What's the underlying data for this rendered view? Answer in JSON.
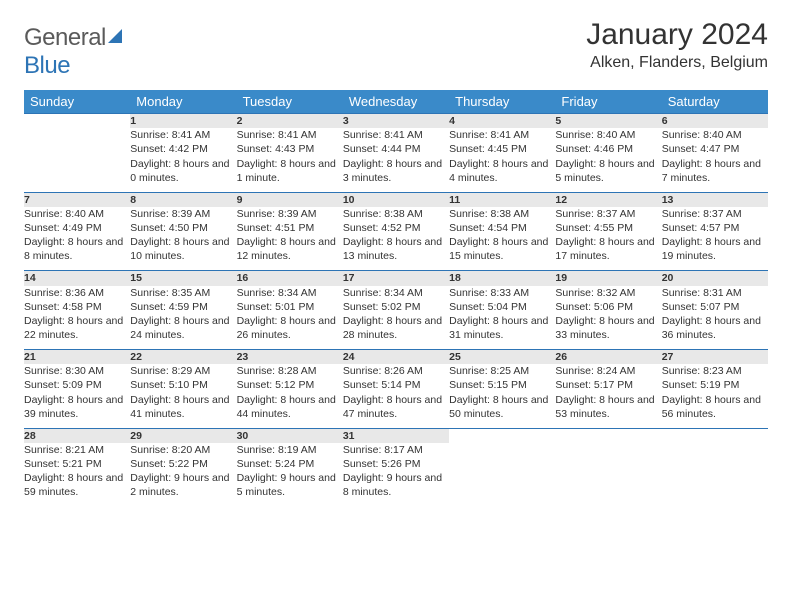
{
  "logo": {
    "name_part1": "General",
    "name_part2": "Blue"
  },
  "title": "January 2024",
  "location": "Alken, Flanders, Belgium",
  "colors": {
    "header_bg": "#3a8ac9",
    "header_text": "#ffffff",
    "row_border": "#2d74b5",
    "daynum_bg": "#e8e8e8",
    "body_text": "#333333",
    "logo_gray": "#5a5a5a",
    "logo_blue": "#2d74b5"
  },
  "columns": [
    "Sunday",
    "Monday",
    "Tuesday",
    "Wednesday",
    "Thursday",
    "Friday",
    "Saturday"
  ],
  "weeks": [
    [
      null,
      {
        "n": "1",
        "sr": "8:41 AM",
        "ss": "4:42 PM",
        "dl": "8 hours and 0 minutes."
      },
      {
        "n": "2",
        "sr": "8:41 AM",
        "ss": "4:43 PM",
        "dl": "8 hours and 1 minute."
      },
      {
        "n": "3",
        "sr": "8:41 AM",
        "ss": "4:44 PM",
        "dl": "8 hours and 3 minutes."
      },
      {
        "n": "4",
        "sr": "8:41 AM",
        "ss": "4:45 PM",
        "dl": "8 hours and 4 minutes."
      },
      {
        "n": "5",
        "sr": "8:40 AM",
        "ss": "4:46 PM",
        "dl": "8 hours and 5 minutes."
      },
      {
        "n": "6",
        "sr": "8:40 AM",
        "ss": "4:47 PM",
        "dl": "8 hours and 7 minutes."
      }
    ],
    [
      {
        "n": "7",
        "sr": "8:40 AM",
        "ss": "4:49 PM",
        "dl": "8 hours and 8 minutes."
      },
      {
        "n": "8",
        "sr": "8:39 AM",
        "ss": "4:50 PM",
        "dl": "8 hours and 10 minutes."
      },
      {
        "n": "9",
        "sr": "8:39 AM",
        "ss": "4:51 PM",
        "dl": "8 hours and 12 minutes."
      },
      {
        "n": "10",
        "sr": "8:38 AM",
        "ss": "4:52 PM",
        "dl": "8 hours and 13 minutes."
      },
      {
        "n": "11",
        "sr": "8:38 AM",
        "ss": "4:54 PM",
        "dl": "8 hours and 15 minutes."
      },
      {
        "n": "12",
        "sr": "8:37 AM",
        "ss": "4:55 PM",
        "dl": "8 hours and 17 minutes."
      },
      {
        "n": "13",
        "sr": "8:37 AM",
        "ss": "4:57 PM",
        "dl": "8 hours and 19 minutes."
      }
    ],
    [
      {
        "n": "14",
        "sr": "8:36 AM",
        "ss": "4:58 PM",
        "dl": "8 hours and 22 minutes."
      },
      {
        "n": "15",
        "sr": "8:35 AM",
        "ss": "4:59 PM",
        "dl": "8 hours and 24 minutes."
      },
      {
        "n": "16",
        "sr": "8:34 AM",
        "ss": "5:01 PM",
        "dl": "8 hours and 26 minutes."
      },
      {
        "n": "17",
        "sr": "8:34 AM",
        "ss": "5:02 PM",
        "dl": "8 hours and 28 minutes."
      },
      {
        "n": "18",
        "sr": "8:33 AM",
        "ss": "5:04 PM",
        "dl": "8 hours and 31 minutes."
      },
      {
        "n": "19",
        "sr": "8:32 AM",
        "ss": "5:06 PM",
        "dl": "8 hours and 33 minutes."
      },
      {
        "n": "20",
        "sr": "8:31 AM",
        "ss": "5:07 PM",
        "dl": "8 hours and 36 minutes."
      }
    ],
    [
      {
        "n": "21",
        "sr": "8:30 AM",
        "ss": "5:09 PM",
        "dl": "8 hours and 39 minutes."
      },
      {
        "n": "22",
        "sr": "8:29 AM",
        "ss": "5:10 PM",
        "dl": "8 hours and 41 minutes."
      },
      {
        "n": "23",
        "sr": "8:28 AM",
        "ss": "5:12 PM",
        "dl": "8 hours and 44 minutes."
      },
      {
        "n": "24",
        "sr": "8:26 AM",
        "ss": "5:14 PM",
        "dl": "8 hours and 47 minutes."
      },
      {
        "n": "25",
        "sr": "8:25 AM",
        "ss": "5:15 PM",
        "dl": "8 hours and 50 minutes."
      },
      {
        "n": "26",
        "sr": "8:24 AM",
        "ss": "5:17 PM",
        "dl": "8 hours and 53 minutes."
      },
      {
        "n": "27",
        "sr": "8:23 AM",
        "ss": "5:19 PM",
        "dl": "8 hours and 56 minutes."
      }
    ],
    [
      {
        "n": "28",
        "sr": "8:21 AM",
        "ss": "5:21 PM",
        "dl": "8 hours and 59 minutes."
      },
      {
        "n": "29",
        "sr": "8:20 AM",
        "ss": "5:22 PM",
        "dl": "9 hours and 2 minutes."
      },
      {
        "n": "30",
        "sr": "8:19 AM",
        "ss": "5:24 PM",
        "dl": "9 hours and 5 minutes."
      },
      {
        "n": "31",
        "sr": "8:17 AM",
        "ss": "5:26 PM",
        "dl": "9 hours and 8 minutes."
      },
      null,
      null,
      null
    ]
  ],
  "labels": {
    "sunrise": "Sunrise:",
    "sunset": "Sunset:",
    "daylight": "Daylight:"
  }
}
